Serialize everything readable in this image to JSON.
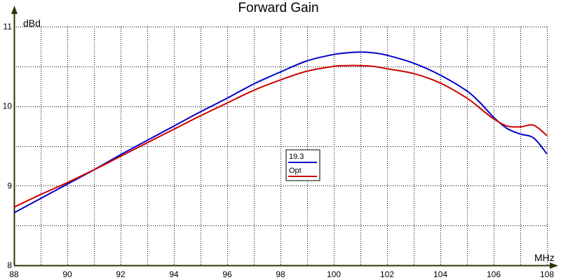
{
  "chart_data": {
    "type": "line",
    "title": "Forward Gain",
    "xlabel": "MHz",
    "ylabel": "dBd",
    "xlim": [
      88,
      108
    ],
    "ylim": [
      8,
      11
    ],
    "x_ticks": [
      88,
      90,
      92,
      94,
      96,
      98,
      100,
      102,
      104,
      106,
      108
    ],
    "y_ticks": [
      8,
      9,
      10,
      11
    ],
    "x_minor_step": 1,
    "y_minor_step": 0.5,
    "grid": true,
    "legend_position": "center",
    "series": [
      {
        "name": "19.3",
        "color": "#0000cc",
        "x": [
          88,
          89,
          90,
          91,
          92,
          93,
          94,
          95,
          96,
          97,
          98,
          99,
          100,
          100.5,
          101,
          101.5,
          102,
          103,
          104,
          105,
          105.5,
          106,
          106.5,
          107,
          107.5,
          108
        ],
        "y": [
          8.66,
          8.84,
          9.02,
          9.2,
          9.39,
          9.57,
          9.75,
          9.93,
          10.1,
          10.28,
          10.43,
          10.57,
          10.65,
          10.67,
          10.68,
          10.67,
          10.64,
          10.54,
          10.39,
          10.19,
          10.04,
          9.86,
          9.72,
          9.65,
          9.6,
          9.4
        ]
      },
      {
        "name": "Opt",
        "color": "#cc0000",
        "x": [
          88,
          89,
          90,
          91,
          92,
          93,
          94,
          95,
          96,
          97,
          98,
          99,
          100,
          100.5,
          101,
          101.5,
          102,
          103,
          104,
          105,
          105.5,
          106,
          106.5,
          107,
          107.5,
          108
        ],
        "y": [
          8.73,
          8.89,
          9.04,
          9.2,
          9.37,
          9.54,
          9.71,
          9.88,
          10.04,
          10.2,
          10.33,
          10.44,
          10.5,
          10.51,
          10.51,
          10.5,
          10.47,
          10.41,
          10.29,
          10.1,
          9.97,
          9.84,
          9.75,
          9.74,
          9.76,
          9.63
        ]
      }
    ]
  }
}
